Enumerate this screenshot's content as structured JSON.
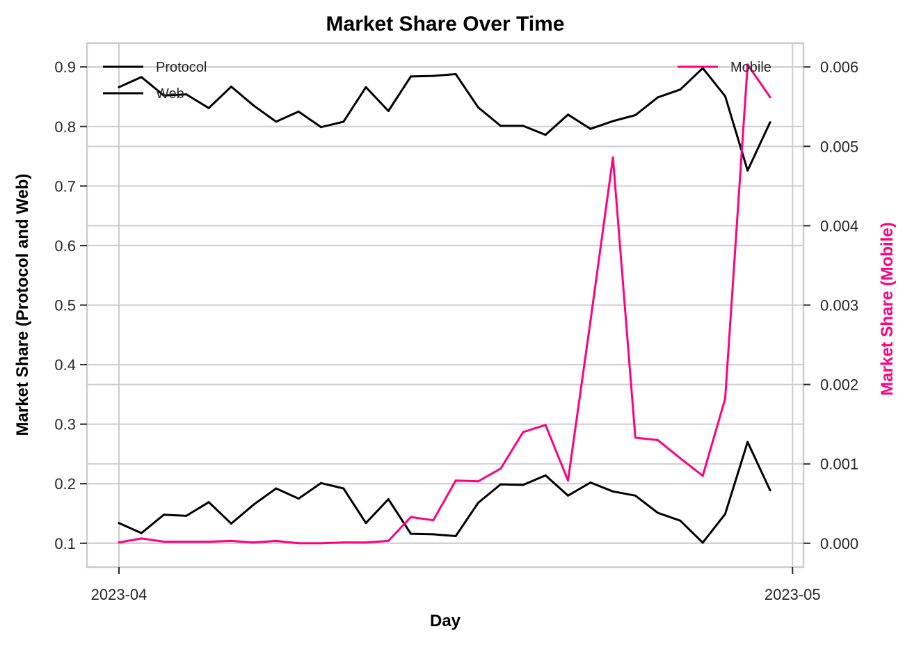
{
  "chart_data": {
    "type": "line",
    "title": "Market Share Over Time",
    "xlabel": "Day",
    "ylabel_left": "Market Share (Protocol and Web)",
    "ylabel_right": "Market Share (Mobile)",
    "x": [
      "2023-04-01",
      "2023-04-02",
      "2023-04-03",
      "2023-04-04",
      "2023-04-05",
      "2023-04-06",
      "2023-04-07",
      "2023-04-08",
      "2023-04-09",
      "2023-04-10",
      "2023-04-11",
      "2023-04-12",
      "2023-04-13",
      "2023-04-14",
      "2023-04-15",
      "2023-04-16",
      "2023-04-17",
      "2023-04-18",
      "2023-04-19",
      "2023-04-20",
      "2023-04-21",
      "2023-04-22",
      "2023-04-23",
      "2023-04-24",
      "2023-04-25",
      "2023-04-26",
      "2023-04-27",
      "2023-04-28",
      "2023-04-29",
      "2023-04-30"
    ],
    "x_ticks": [
      {
        "date": "2023-04-01",
        "label": "2023-04"
      },
      {
        "date": "2023-05-01",
        "label": "2023-05"
      }
    ],
    "xlim": [
      "2023-04-01",
      "2023-04-30"
    ],
    "ylim_left": [
      0.06,
      0.94
    ],
    "yticks_left": [
      0.1,
      0.2,
      0.3,
      0.4,
      0.5,
      0.6,
      0.7,
      0.8,
      0.9
    ],
    "ylim_right": [
      -0.0003,
      0.0063
    ],
    "yticks_right": [
      0.0,
      0.001,
      0.002,
      0.003,
      0.004,
      0.005,
      0.006
    ],
    "yticks_right_labels": [
      "0.000",
      "0.001",
      "0.002",
      "0.003",
      "0.004",
      "0.005",
      "0.006"
    ],
    "grid": true,
    "series": [
      {
        "name": "Protocol",
        "axis": "left",
        "color": "#000000",
        "values": [
          0.866,
          0.883,
          0.852,
          0.854,
          0.831,
          0.867,
          0.835,
          0.808,
          0.825,
          0.799,
          0.808,
          0.866,
          0.826,
          0.884,
          0.885,
          0.888,
          0.832,
          0.801,
          0.801,
          0.786,
          0.82,
          0.796,
          0.809,
          0.819,
          0.849,
          0.862,
          0.898,
          0.851,
          0.726,
          0.807
        ]
      },
      {
        "name": "Web",
        "axis": "left",
        "color": "#000000",
        "values": [
          0.134,
          0.117,
          0.148,
          0.146,
          0.169,
          0.133,
          0.165,
          0.192,
          0.175,
          0.201,
          0.192,
          0.134,
          0.174,
          0.116,
          0.115,
          0.112,
          0.168,
          0.199,
          0.198,
          0.214,
          0.18,
          0.202,
          0.187,
          0.18,
          0.151,
          0.138,
          0.101,
          0.149,
          0.27,
          0.189
        ]
      },
      {
        "name": "Mobile",
        "axis": "right",
        "color": "#ff007f",
        "values": [
          1e-05,
          6e-05,
          2e-05,
          2e-05,
          2e-05,
          3e-05,
          1e-05,
          3e-05,
          0.0,
          0.0,
          1e-05,
          1e-05,
          3e-05,
          0.00033,
          0.00029,
          0.00079,
          0.00078,
          0.00094,
          0.0014,
          0.00149,
          0.00079,
          0.0028,
          0.00486,
          0.00133,
          0.0013,
          0.00107,
          0.00085,
          0.00182,
          0.00603,
          0.00562
        ]
      }
    ],
    "legend_left": {
      "placement": "top-left",
      "entries": [
        "Protocol",
        "Web"
      ]
    },
    "legend_right": {
      "placement": "top-right",
      "entries": [
        "Mobile"
      ]
    },
    "colors": {
      "axis_frame": "#cccccc",
      "grid": "#cccccc",
      "right_label": "#ff007f"
    }
  }
}
